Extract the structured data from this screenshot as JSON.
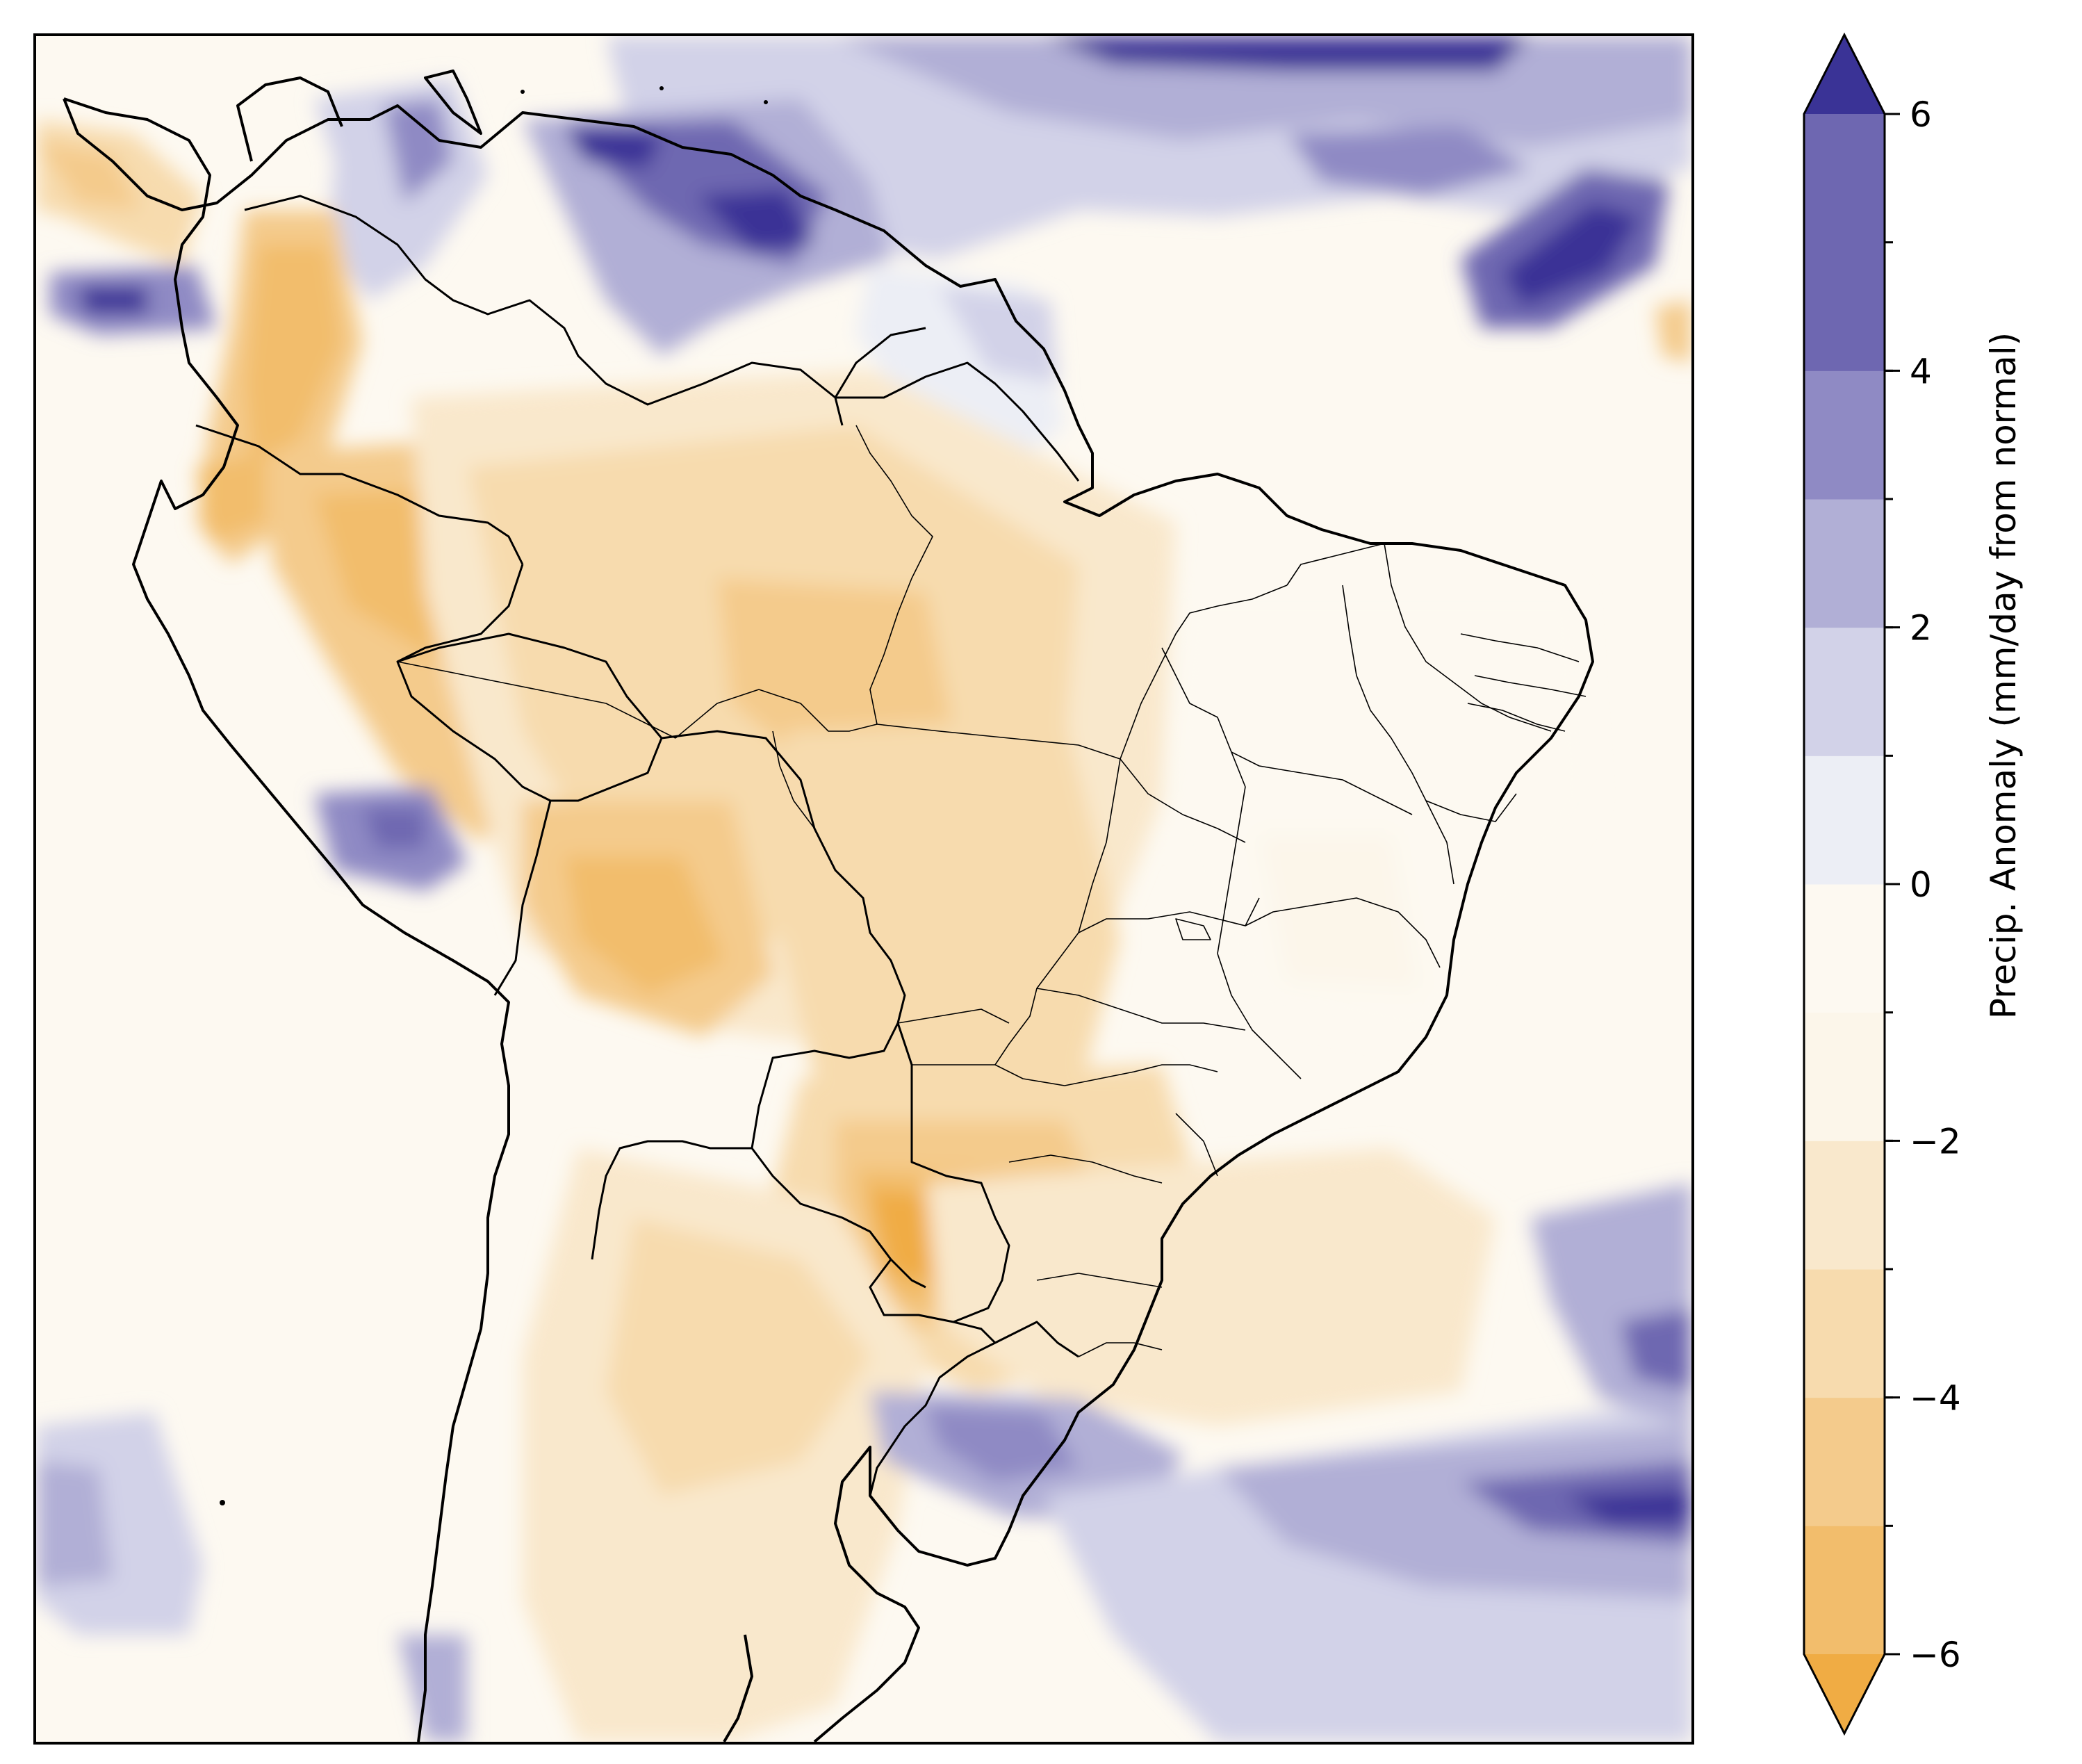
{
  "figure": {
    "colorbar": {
      "label": "Precip. Anomaly (mm/day from normal)",
      "vmin": -6,
      "vmax": 6,
      "levels": [
        -6,
        -5,
        -4,
        -3,
        -2,
        -1,
        0,
        1,
        2,
        3,
        4,
        5,
        6
      ],
      "extend": "both",
      "tick_values": [
        -6,
        -4,
        -2,
        0,
        2,
        4,
        6
      ],
      "tick_labels": [
        "−6",
        "−4",
        "−2",
        "0",
        "2",
        "4",
        "6"
      ],
      "colors_low_to_high": [
        "#f0ac44",
        "#f2bd6c",
        "#f4cb8c",
        "#f7dbae",
        "#f9e8cc",
        "#fcf6ea",
        "#fdf9f1",
        "#eceef5",
        "#d2d2e8",
        "#b1afd6",
        "#8f8ac4",
        "#6e67b1",
        "#3a3396"
      ]
    },
    "map": {
      "region": "South America",
      "extent": "90°W–25°W, 45°S–15°N",
      "borders": [
        "coastline",
        "country borders",
        "Brazil state borders"
      ],
      "ocean_color": "#fdf9f1"
    }
  }
}
